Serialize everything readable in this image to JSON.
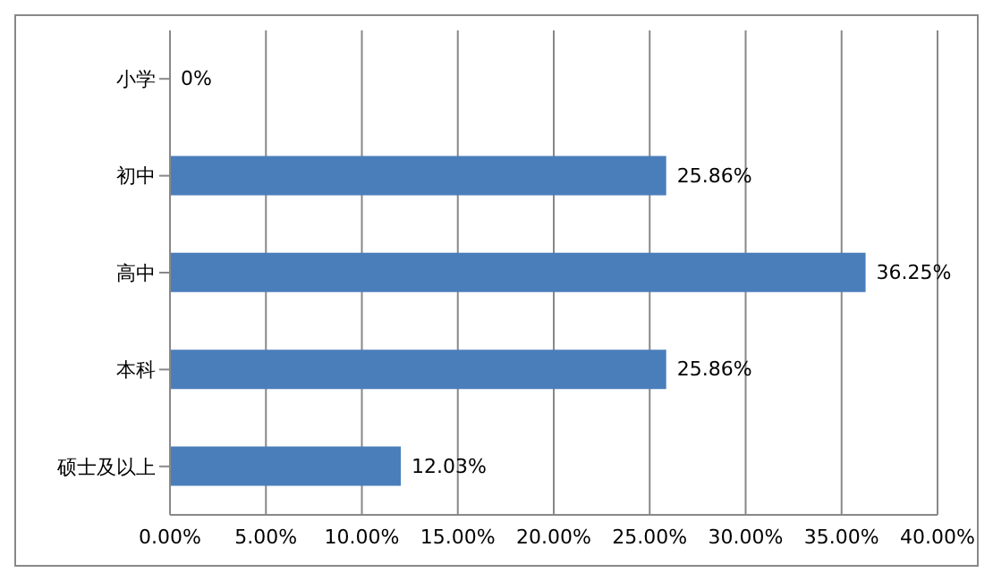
{
  "chart_data": {
    "type": "bar",
    "orientation": "horizontal",
    "categories": [
      "小学",
      "初中",
      "高中",
      "本科",
      "硕士及以上"
    ],
    "values": [
      0,
      25.86,
      36.25,
      25.86,
      12.03
    ],
    "color": "#4a7ebb",
    "value_labels": [
      "0%",
      "25.86%",
      "36.25%",
      "25.86%",
      "12.03%"
    ],
    "xlim": [
      0,
      40
    ],
    "xticks": [
      {
        "value": 0,
        "label": "0.00%"
      },
      {
        "value": 5,
        "label": "5.00%"
      },
      {
        "value": 10,
        "label": "10.00%"
      },
      {
        "value": 15,
        "label": "15.00%"
      },
      {
        "value": 20,
        "label": "20.00%"
      },
      {
        "value": 25,
        "label": "25.00%"
      },
      {
        "value": 30,
        "label": "30.00%"
      },
      {
        "value": 35,
        "label": "35.00%"
      },
      {
        "value": 40,
        "label": "40.00%"
      }
    ],
    "grid": "x",
    "legend": false
  }
}
